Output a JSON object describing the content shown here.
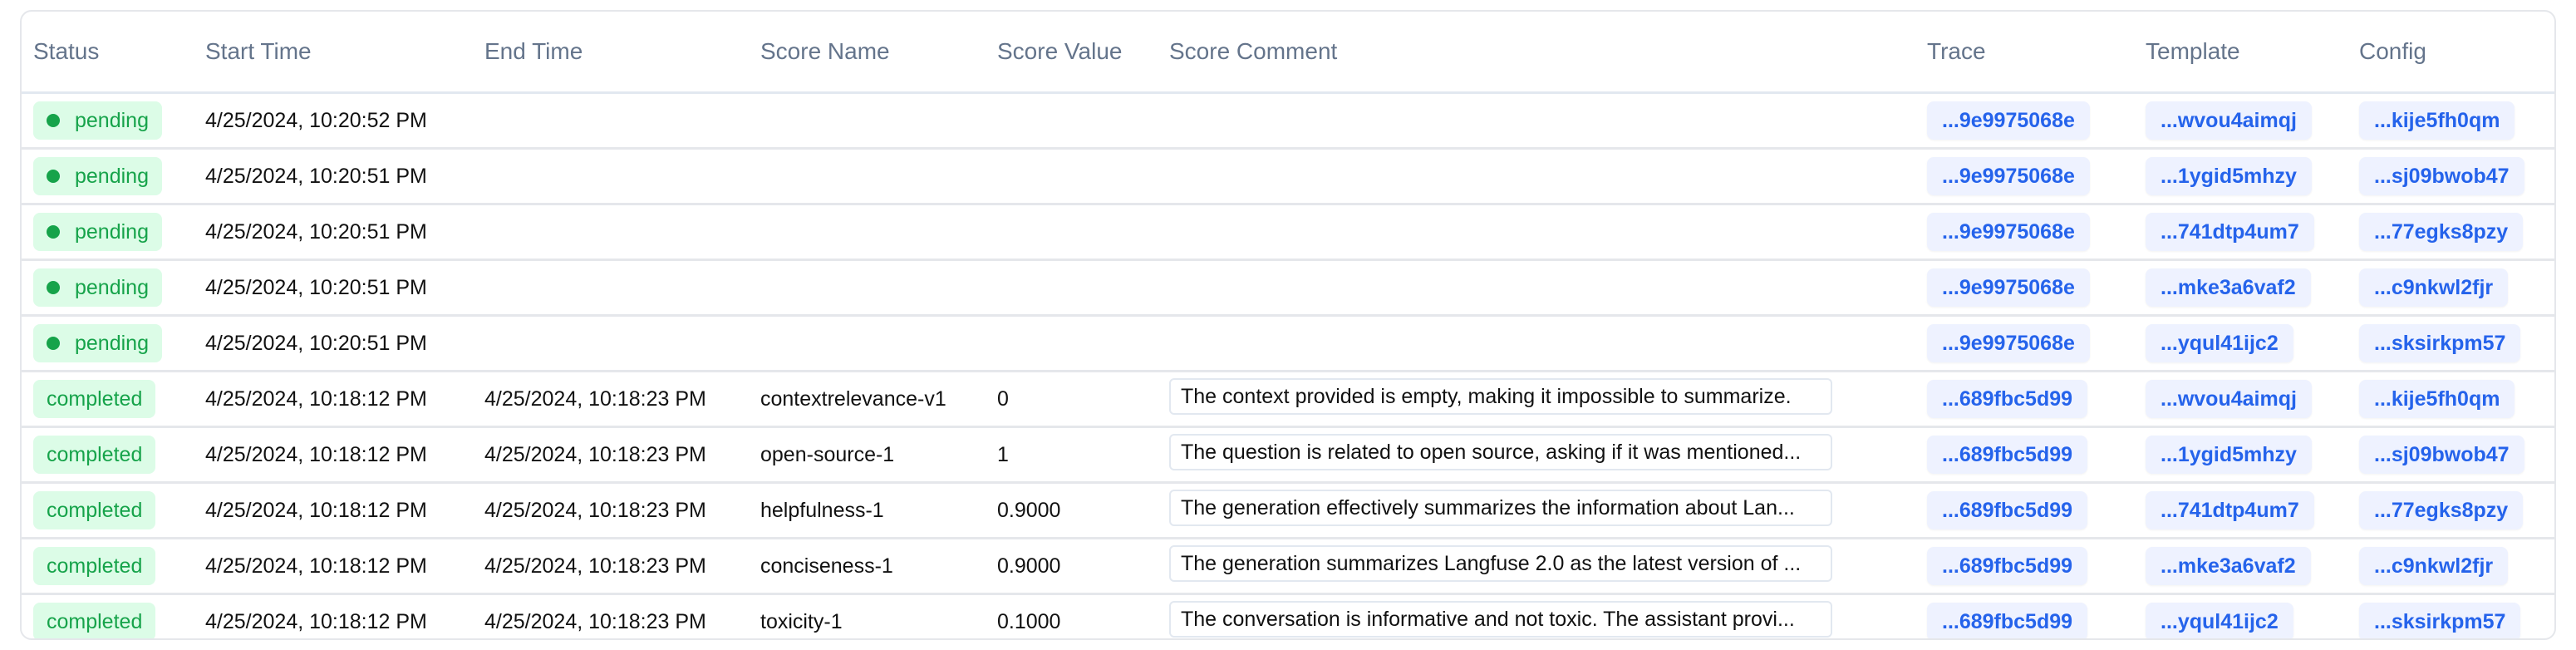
{
  "colors": {
    "status_bg": "#dcfce7",
    "status_text": "#16a34a",
    "id_chip_bg": "#eef2ff",
    "id_chip_text": "#2563eb",
    "header_text": "#64748b"
  },
  "columns": [
    "Status",
    "Start Time",
    "End Time",
    "Score Name",
    "Score Value",
    "Score Comment",
    "Trace",
    "Template",
    "Config"
  ],
  "rows": [
    {
      "status": "pending",
      "start": "4/25/2024, 10:20:52 PM",
      "end": "",
      "score_name": "",
      "score_value": "",
      "comment": "",
      "trace": "...9e9975068e",
      "template": "...wvou4aimqj",
      "config": "...kije5fh0qm"
    },
    {
      "status": "pending",
      "start": "4/25/2024, 10:20:51 PM",
      "end": "",
      "score_name": "",
      "score_value": "",
      "comment": "",
      "trace": "...9e9975068e",
      "template": "...1ygid5mhzy",
      "config": "...sj09bwob47"
    },
    {
      "status": "pending",
      "start": "4/25/2024, 10:20:51 PM",
      "end": "",
      "score_name": "",
      "score_value": "",
      "comment": "",
      "trace": "...9e9975068e",
      "template": "...741dtp4um7",
      "config": "...77egks8pzy"
    },
    {
      "status": "pending",
      "start": "4/25/2024, 10:20:51 PM",
      "end": "",
      "score_name": "",
      "score_value": "",
      "comment": "",
      "trace": "...9e9975068e",
      "template": "...mke3a6vaf2",
      "config": "...c9nkwl2fjr"
    },
    {
      "status": "pending",
      "start": "4/25/2024, 10:20:51 PM",
      "end": "",
      "score_name": "",
      "score_value": "",
      "comment": "",
      "trace": "...9e9975068e",
      "template": "...yqul41ijc2",
      "config": "...sksirkpm57"
    },
    {
      "status": "completed",
      "start": "4/25/2024, 10:18:12 PM",
      "end": "4/25/2024, 10:18:23 PM",
      "score_name": "contextrelevance-v1",
      "score_value": "0",
      "comment": "The context provided is empty, making it impossible to summarize.",
      "trace": "...689fbc5d99",
      "template": "...wvou4aimqj",
      "config": "...kije5fh0qm"
    },
    {
      "status": "completed",
      "start": "4/25/2024, 10:18:12 PM",
      "end": "4/25/2024, 10:18:23 PM",
      "score_name": "open-source-1",
      "score_value": "1",
      "comment": "The question is related to open source, asking if it was mentioned...",
      "trace": "...689fbc5d99",
      "template": "...1ygid5mhzy",
      "config": "...sj09bwob47"
    },
    {
      "status": "completed",
      "start": "4/25/2024, 10:18:12 PM",
      "end": "4/25/2024, 10:18:23 PM",
      "score_name": "helpfulness-1",
      "score_value": "0.9000",
      "comment": "The generation effectively summarizes the information about Lan...",
      "trace": "...689fbc5d99",
      "template": "...741dtp4um7",
      "config": "...77egks8pzy"
    },
    {
      "status": "completed",
      "start": "4/25/2024, 10:18:12 PM",
      "end": "4/25/2024, 10:18:23 PM",
      "score_name": "conciseness-1",
      "score_value": "0.9000",
      "comment": "The generation summarizes Langfuse 2.0 as the latest version of ...",
      "trace": "...689fbc5d99",
      "template": "...mke3a6vaf2",
      "config": "...c9nkwl2fjr"
    },
    {
      "status": "completed",
      "start": "4/25/2024, 10:18:12 PM",
      "end": "4/25/2024, 10:18:23 PM",
      "score_name": "toxicity-1",
      "score_value": "0.1000",
      "comment": "The conversation is informative and not toxic. The assistant provi...",
      "trace": "...689fbc5d99",
      "template": "...yqul41ijc2",
      "config": "...sksirkpm57"
    }
  ]
}
